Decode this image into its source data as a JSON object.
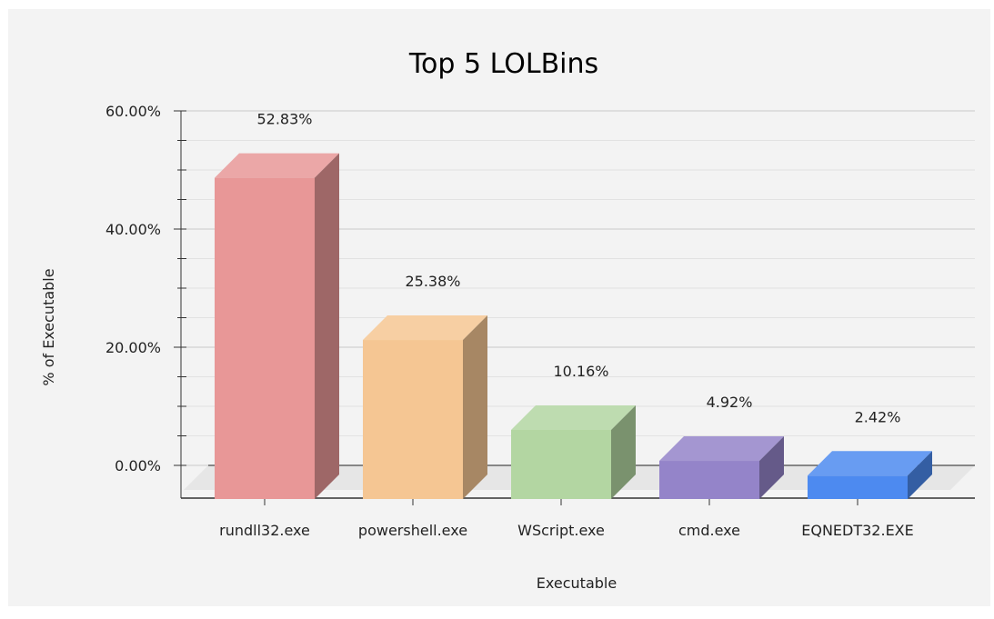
{
  "chart_data": {
    "type": "bar",
    "title": "Top 5 LOLBins",
    "xlabel": "Executable",
    "ylabel": "% of Executable",
    "categories": [
      "rundll32.exe",
      "powershell.exe",
      "WScript.exe",
      "cmd.exe",
      "EQNEDT32.EXE"
    ],
    "values": [
      52.83,
      25.38,
      10.16,
      4.92,
      2.42
    ],
    "value_labels": [
      "52.83%",
      "25.38%",
      "10.16%",
      "4.92%",
      "2.42%"
    ],
    "y_ticks": [
      0,
      20,
      40,
      60
    ],
    "y_tick_labels": [
      "0.00%",
      "20.00%",
      "40.00%",
      "60.00%"
    ],
    "ylim": [
      0,
      60
    ],
    "grid": true,
    "style": "3d",
    "colors": [
      "#e89797",
      "#f5c693",
      "#b3d6a2",
      "#9484c9",
      "#4d8af0"
    ]
  }
}
